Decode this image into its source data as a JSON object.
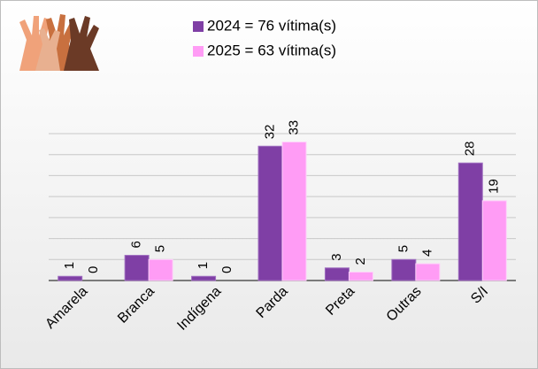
{
  "chart_data": {
    "type": "bar",
    "categories": [
      "Amarela",
      "Branca",
      "Indígena",
      "Parda",
      "Preta",
      "Outras",
      "S/I"
    ],
    "series": [
      {
        "name": "2024 = 76 vítima(s)",
        "color": "#7f3fa5",
        "values": [
          1,
          6,
          1,
          32,
          3,
          5,
          28
        ]
      },
      {
        "name": "2025 = 63 vítima(s)",
        "color": "#ff9cf5",
        "values": [
          0,
          5,
          0,
          33,
          2,
          4,
          19
        ]
      }
    ],
    "ylim": [
      0,
      35
    ],
    "yticks": [
      0,
      5,
      10,
      15,
      20,
      25,
      30,
      35
    ],
    "grid": true
  }
}
